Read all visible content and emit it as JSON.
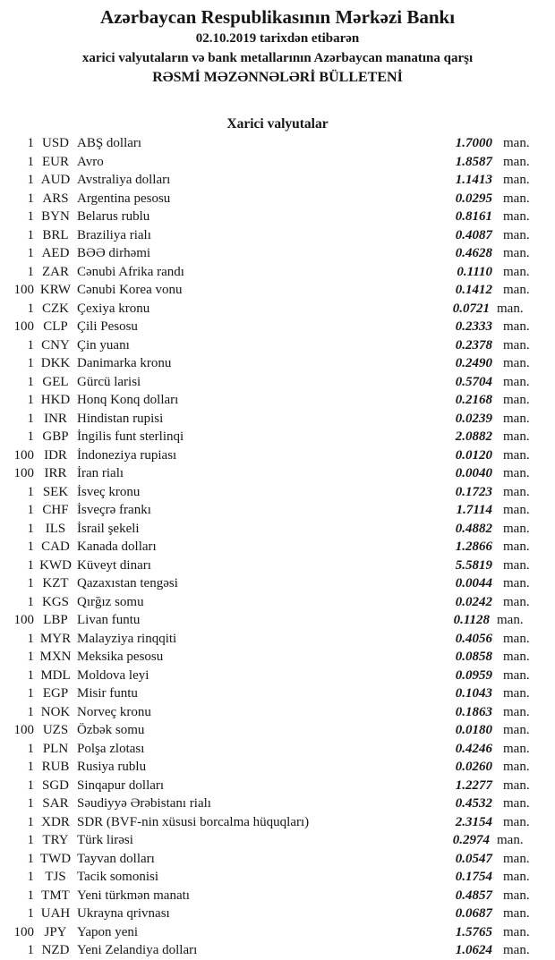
{
  "header": {
    "bank_name": "Azərbaycan Respublikasının Mərkəzi Bankı",
    "date_line": "02.10.2019 tarixdən etibarən",
    "scope_line": "xarici valyutaların və bank metallarının Azərbaycan manatına qarşı",
    "bulletin_title": "RƏSMİ MƏZƏNNƏLƏRİ BÜLLETENİ"
  },
  "section": {
    "title": "Xarici valyutalar"
  },
  "unit_label": "man.",
  "rates": [
    {
      "qty": "1",
      "code": "USD",
      "name": "ABŞ dolları",
      "rate": "1.7000"
    },
    {
      "qty": "1",
      "code": "EUR",
      "name": "Avro",
      "rate": "1.8587"
    },
    {
      "qty": "1",
      "code": "AUD",
      "name": "Avstraliya dolları",
      "rate": "1.1413"
    },
    {
      "qty": "1",
      "code": "ARS",
      "name": "Argentina pesosu",
      "rate": "0.0295"
    },
    {
      "qty": "1",
      "code": "BYN",
      "name": "Belarus rublu",
      "rate": "0.8161"
    },
    {
      "qty": "1",
      "code": "BRL",
      "name": "Braziliya rialı",
      "rate": "0.4087"
    },
    {
      "qty": "1",
      "code": "AED",
      "name": "BƏƏ dirhəmi",
      "rate": "0.4628"
    },
    {
      "qty": "1",
      "code": "ZAR",
      "name": "Cənubi Afrika randı",
      "rate": "0.1110"
    },
    {
      "qty": "100",
      "code": "KRW",
      "name": "Cənubi Korea vonu",
      "rate": "0.1412"
    },
    {
      "qty": "1",
      "code": "CZK",
      "name": "Çexiya kronu",
      "rate": "0.0721"
    },
    {
      "qty": "100",
      "code": "CLP",
      "name": "Çili Pesosu",
      "rate": "0.2333"
    },
    {
      "qty": "1",
      "code": "CNY",
      "name": "Çin yuanı",
      "rate": "0.2378"
    },
    {
      "qty": "1",
      "code": "DKK",
      "name": "Danimarka kronu",
      "rate": "0.2490"
    },
    {
      "qty": "1",
      "code": "GEL",
      "name": "Gürcü larisi",
      "rate": "0.5704"
    },
    {
      "qty": "1",
      "code": "HKD",
      "name": "Honq Konq dolları",
      "rate": "0.2168"
    },
    {
      "qty": "1",
      "code": "INR",
      "name": "Hindistan rupisi",
      "rate": "0.0239"
    },
    {
      "qty": "1",
      "code": "GBP",
      "name": "İngilis funt sterlinqi",
      "rate": "2.0882"
    },
    {
      "qty": "100",
      "code": "IDR",
      "name": "İndoneziya rupiası",
      "rate": "0.0120"
    },
    {
      "qty": "100",
      "code": "IRR",
      "name": "İran rialı",
      "rate": "0.0040"
    },
    {
      "qty": "1",
      "code": "SEK",
      "name": "İsveç kronu",
      "rate": "0.1723"
    },
    {
      "qty": "1",
      "code": "CHF",
      "name": "İsveçrə frankı",
      "rate": "1.7114"
    },
    {
      "qty": "1",
      "code": "ILS",
      "name": "İsrail şekeli",
      "rate": "0.4882"
    },
    {
      "qty": "1",
      "code": "CAD",
      "name": "Kanada dolları",
      "rate": "1.2866"
    },
    {
      "qty": "1",
      "code": "KWD",
      "name": "Küveyt dinarı",
      "rate": "5.5819"
    },
    {
      "qty": "1",
      "code": "KZT",
      "name": "Qazaxıstan tengəsi",
      "rate": "0.0044"
    },
    {
      "qty": "1",
      "code": "KGS",
      "name": "Qırğız somu",
      "rate": "0.0242"
    },
    {
      "qty": "100",
      "code": "LBP",
      "name": "Livan funtu",
      "rate": "0.1128"
    },
    {
      "qty": "1",
      "code": "MYR",
      "name": "Malayziya rinqqiti",
      "rate": "0.4056"
    },
    {
      "qty": "1",
      "code": "MXN",
      "name": "Meksika pesosu",
      "rate": "0.0858"
    },
    {
      "qty": "1",
      "code": "MDL",
      "name": "Moldova leyi",
      "rate": "0.0959"
    },
    {
      "qty": "1",
      "code": "EGP",
      "name": "Misir funtu",
      "rate": "0.1043"
    },
    {
      "qty": "1",
      "code": "NOK",
      "name": "Norveç kronu",
      "rate": "0.1863"
    },
    {
      "qty": "100",
      "code": "UZS",
      "name": "Özbək somu",
      "rate": "0.0180"
    },
    {
      "qty": "1",
      "code": "PLN",
      "name": "Polşa zlotası",
      "rate": "0.4246"
    },
    {
      "qty": "1",
      "code": "RUB",
      "name": "Rusiya rublu",
      "rate": "0.0260"
    },
    {
      "qty": "1",
      "code": "SGD",
      "name": "Sinqapur dolları",
      "rate": "1.2277"
    },
    {
      "qty": "1",
      "code": "SAR",
      "name": "Səudiyyə Ərəbistanı rialı",
      "rate": "0.4532"
    },
    {
      "qty": "1",
      "code": "XDR",
      "name": "SDR (BVF-nin xüsusi borcalma hüquqları)",
      "rate": "2.3154"
    },
    {
      "qty": "1",
      "code": "TRY",
      "name": "Türk lirəsi",
      "rate": "0.2974"
    },
    {
      "qty": "1",
      "code": "TWD",
      "name": "Tayvan dolları",
      "rate": "0.0547"
    },
    {
      "qty": "1",
      "code": "TJS",
      "name": "Tacik somonisi",
      "rate": "0.1754"
    },
    {
      "qty": "1",
      "code": "TMT",
      "name": "Yeni türkmən manatı",
      "rate": "0.4857"
    },
    {
      "qty": "1",
      "code": "UAH",
      "name": "Ukrayna qrivnası",
      "rate": "0.0687"
    },
    {
      "qty": "100",
      "code": "JPY",
      "name": "Yapon yeni",
      "rate": "1.5765"
    },
    {
      "qty": "1",
      "code": "NZD",
      "name": "Yeni Zelandiya dolları",
      "rate": "1.0624"
    }
  ]
}
